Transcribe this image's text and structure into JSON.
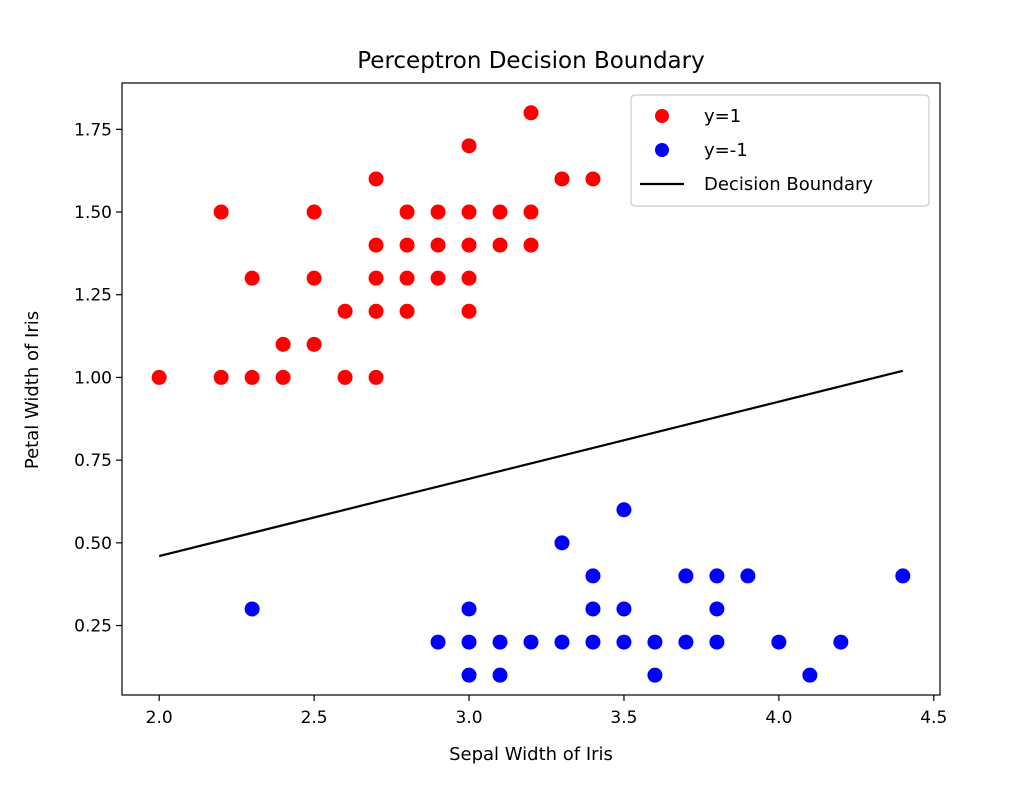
{
  "chart_data": {
    "type": "scatter",
    "title": "Perceptron Decision Boundary",
    "xlabel": "Sepal Width of Iris",
    "ylabel": "Petal Width of Iris",
    "xlim": [
      1.88,
      4.52
    ],
    "ylim": [
      0.04,
      1.89
    ],
    "xticks": [
      2.0,
      2.5,
      3.0,
      3.5,
      4.0,
      4.5
    ],
    "xtick_labels": [
      "2.0",
      "2.5",
      "3.0",
      "3.5",
      "4.0",
      "4.5"
    ],
    "yticks": [
      0.25,
      0.5,
      0.75,
      1.0,
      1.25,
      1.5,
      1.75
    ],
    "ytick_labels": [
      "0.25",
      "0.50",
      "0.75",
      "1.00",
      "1.25",
      "1.50",
      "1.75"
    ],
    "grid": false,
    "legend": "top-right",
    "series": [
      {
        "name": "y=1",
        "color": "#ff0000",
        "points": [
          [
            3.2,
            1.8
          ],
          [
            3.0,
            1.7
          ],
          [
            2.7,
            1.6
          ],
          [
            3.3,
            1.6
          ],
          [
            3.4,
            1.6
          ],
          [
            2.2,
            1.5
          ],
          [
            2.5,
            1.5
          ],
          [
            2.8,
            1.5
          ],
          [
            2.9,
            1.5
          ],
          [
            3.0,
            1.5
          ],
          [
            3.1,
            1.5
          ],
          [
            3.2,
            1.5
          ],
          [
            2.7,
            1.4
          ],
          [
            2.8,
            1.4
          ],
          [
            2.9,
            1.4
          ],
          [
            3.0,
            1.4
          ],
          [
            3.1,
            1.4
          ],
          [
            3.2,
            1.4
          ],
          [
            2.3,
            1.3
          ],
          [
            2.5,
            1.3
          ],
          [
            2.7,
            1.3
          ],
          [
            2.8,
            1.3
          ],
          [
            2.9,
            1.3
          ],
          [
            3.0,
            1.3
          ],
          [
            2.6,
            1.2
          ],
          [
            2.7,
            1.2
          ],
          [
            2.8,
            1.2
          ],
          [
            3.0,
            1.2
          ],
          [
            2.4,
            1.1
          ],
          [
            2.5,
            1.1
          ],
          [
            2.0,
            1.0
          ],
          [
            2.2,
            1.0
          ],
          [
            2.3,
            1.0
          ],
          [
            2.4,
            1.0
          ],
          [
            2.6,
            1.0
          ],
          [
            2.7,
            1.0
          ]
        ]
      },
      {
        "name": "y=-1",
        "color": "#0000ff",
        "points": [
          [
            3.5,
            0.6
          ],
          [
            3.3,
            0.5
          ],
          [
            3.4,
            0.4
          ],
          [
            3.7,
            0.4
          ],
          [
            3.8,
            0.4
          ],
          [
            3.9,
            0.4
          ],
          [
            4.4,
            0.4
          ],
          [
            2.3,
            0.3
          ],
          [
            3.0,
            0.3
          ],
          [
            3.4,
            0.3
          ],
          [
            3.5,
            0.3
          ],
          [
            3.8,
            0.3
          ],
          [
            2.9,
            0.2
          ],
          [
            3.0,
            0.2
          ],
          [
            3.1,
            0.2
          ],
          [
            3.2,
            0.2
          ],
          [
            3.3,
            0.2
          ],
          [
            3.4,
            0.2
          ],
          [
            3.5,
            0.2
          ],
          [
            3.6,
            0.2
          ],
          [
            3.7,
            0.2
          ],
          [
            3.8,
            0.2
          ],
          [
            4.0,
            0.2
          ],
          [
            4.2,
            0.2
          ],
          [
            3.0,
            0.1
          ],
          [
            3.1,
            0.1
          ],
          [
            3.6,
            0.1
          ],
          [
            4.1,
            0.1
          ]
        ]
      }
    ],
    "lines": [
      {
        "name": "Decision Boundary",
        "color": "#000000",
        "x": [
          2.0,
          4.4
        ],
        "y": [
          0.46,
          1.02
        ]
      }
    ]
  }
}
